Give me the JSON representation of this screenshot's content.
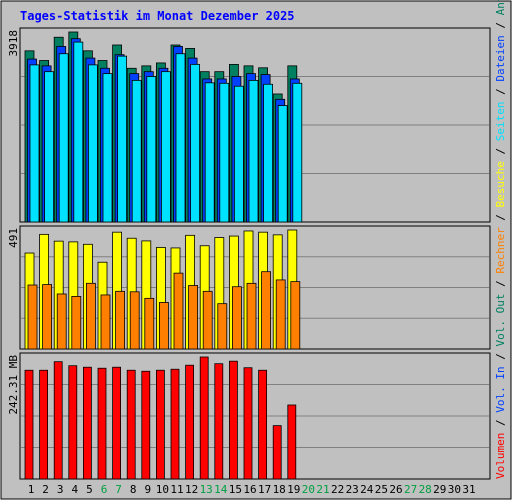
{
  "chart_data": {
    "type": "bar",
    "title": "Tages-Statistik im Monat Dezember 2025",
    "days": [
      "1",
      "2",
      "3",
      "4",
      "5",
      "6",
      "7",
      "8",
      "9",
      "10",
      "11",
      "12",
      "13",
      "14",
      "15",
      "16",
      "17",
      "18",
      "19",
      "20",
      "21",
      "22",
      "23",
      "24",
      "25",
      "26",
      "27",
      "28",
      "29",
      "30",
      "31"
    ],
    "weekend_days": [
      6,
      7,
      13,
      14,
      20,
      21,
      27,
      28
    ],
    "colors": {
      "background": "#c0c0c0",
      "frame": "#000000",
      "title": "#0000ff",
      "grid": "#808080",
      "anfragen": "#008060",
      "dateien": "#0040ff",
      "seiten": "#00e0ff",
      "besuche": "#ffff00",
      "rechner": "#ff8000",
      "volumen": "#ff0000",
      "weekday_label": "#000000",
      "weekend_label": "#00a040",
      "sep_label": "#000000"
    },
    "panels": [
      {
        "id": "requests",
        "max_label": "3918",
        "max": 3918,
        "series": [
          {
            "name": "Anfragen",
            "color_key": "anfragen",
            "values": [
              3530,
              3330,
              3810,
              3918,
              3530,
              3330,
              3650,
              3170,
              3220,
              3280,
              3650,
              3580,
              3100,
              3100,
              3250,
              3220,
              3180,
              2640,
              3220,
              null,
              null,
              null,
              null,
              null,
              null,
              null,
              null,
              null,
              null,
              null,
              null
            ]
          },
          {
            "name": "Dateien",
            "color_key": "dateien",
            "values": [
              3360,
              3220,
              3620,
              3780,
              3380,
              3170,
              3450,
              3060,
              3100,
              3170,
              3620,
              3380,
              2950,
              2950,
              3000,
              3060,
              3040,
              2530,
              2950,
              null,
              null,
              null,
              null,
              null,
              null,
              null,
              null,
              null,
              null,
              null,
              null
            ]
          },
          {
            "name": "Seiten",
            "color_key": "seiten",
            "values": [
              3240,
              3100,
              3470,
              3710,
              3240,
              3060,
              3420,
              2920,
              3000,
              3100,
              3470,
              3250,
              2870,
              2860,
              2800,
              2920,
              2840,
              2400,
              2860,
              null,
              null,
              null,
              null,
              null,
              null,
              null,
              null,
              null,
              null,
              null,
              null
            ]
          }
        ]
      },
      {
        "id": "visits",
        "max_label": "491",
        "max": 491,
        "series": [
          {
            "name": "Besuche",
            "color_key": "besuche",
            "values": [
              396,
              473,
              445,
              442,
              432,
              358,
              482,
              457,
              446,
              419,
              417,
              469,
              426,
              460,
              466,
              487,
              482,
              471,
              491,
              null,
              null,
              null,
              null,
              null,
              null,
              null,
              null,
              null,
              null,
              null,
              null
            ]
          },
          {
            "name": "Rechner",
            "color_key": "rechner",
            "values": [
              264,
              266,
              227,
              217,
              271,
              223,
              238,
              236,
              209,
              192,
              313,
              262,
              238,
              187,
              257,
              271,
              319,
              285,
              278,
              null,
              null,
              null,
              null,
              null,
              null,
              null,
              null,
              null,
              null,
              null,
              null
            ]
          }
        ]
      },
      {
        "id": "volume",
        "max_label": "242.31 MB",
        "max": 242.31,
        "series": [
          {
            "name": "Volumen",
            "color_key": "volumen",
            "values": [
              216,
              216,
              233,
              225,
              222,
              220,
              222,
              216,
              214,
              216,
              218,
              226,
              242.31,
              229,
              234,
              221,
              216,
              106,
              147,
              null,
              null,
              null,
              null,
              null,
              null,
              null,
              null,
              null,
              null,
              null,
              null
            ]
          }
        ]
      }
    ],
    "legend": {
      "volumen": "Volumen",
      "vol_in": "Vol. In",
      "vol_out": "Vol. Out",
      "rechner": "Rechner",
      "besuche": "Besuche",
      "seiten": "Seiten",
      "dateien": "Dateien",
      "anfragen": "Anfragen",
      "separator": "/"
    }
  }
}
